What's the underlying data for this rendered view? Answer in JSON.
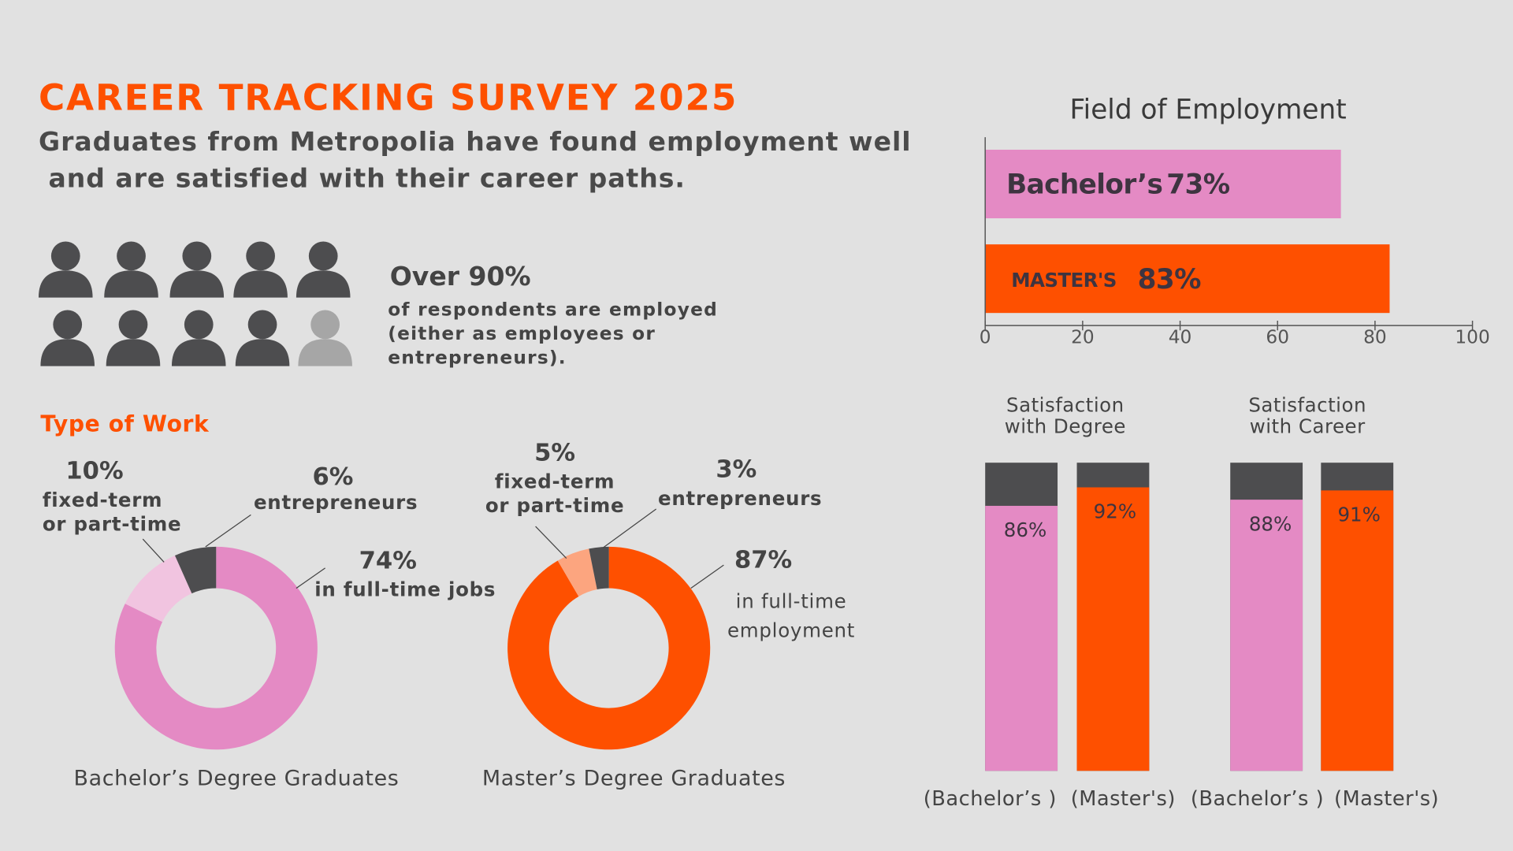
{
  "header": {
    "title": "CAREER TRACKING SURVEY 2025",
    "subtitle": "Graduates from Metropolia have found employment well\n and are satisfied with their career paths."
  },
  "employment_stat": {
    "headline": "Over 90%",
    "description": "of respondents are employed\n(either as employees or\nentrepreneurs)."
  },
  "section_title": "Type of Work",
  "chart_data": [
    {
      "type": "hbar",
      "title": "Field of Employment",
      "categories": [
        "Bachelor’s",
        "MASTER'S"
      ],
      "values": [
        73,
        83
      ],
      "value_labels": [
        "73%",
        "83%"
      ],
      "colors": [
        "#e48ac4",
        "#fe5000"
      ],
      "xlim": [
        0,
        100
      ],
      "xticks": [
        0,
        20,
        40,
        60,
        80,
        100
      ]
    },
    {
      "type": "donut",
      "title": "Bachelor’s Degree Graduates",
      "categories": [
        "in full-time jobs",
        "fixed-term\nor part-time",
        "entrepreneurs"
      ],
      "values": [
        74,
        10,
        6
      ],
      "value_labels": [
        "74%",
        "10%",
        "6%"
      ],
      "colors": [
        "#e48ac4",
        "#f1c4e0",
        "#4d4d4f"
      ]
    },
    {
      "type": "donut",
      "title": "Master’s Degree Graduates",
      "categories": [
        "in full-time\nemployment",
        "fixed-term\nor part-time",
        "entrepreneurs"
      ],
      "values": [
        87,
        5,
        3
      ],
      "value_labels": [
        "87%",
        "5%",
        "3%"
      ],
      "colors": [
        "#fe5000",
        "#fca57f",
        "#4d4d4f"
      ]
    },
    {
      "type": "bar",
      "title": "Satisfaction\nwith Degree",
      "categories": [
        "(Bachelor’s )",
        "(Master's)"
      ],
      "values": [
        86,
        92
      ],
      "value_labels": [
        "86%",
        "92%"
      ],
      "colors": [
        "#e48ac4",
        "#fe5000"
      ],
      "remainder_color": "#4d4d4f",
      "ylim": [
        0,
        100
      ]
    },
    {
      "type": "bar",
      "title": "Satisfaction\nwith Career",
      "categories": [
        "(Bachelor’s )",
        "(Master's)"
      ],
      "values": [
        88,
        91
      ],
      "value_labels": [
        "88%",
        "91%"
      ],
      "colors": [
        "#e48ac4",
        "#fe5000"
      ],
      "remainder_color": "#4d4d4f",
      "ylim": [
        0,
        100
      ]
    }
  ]
}
